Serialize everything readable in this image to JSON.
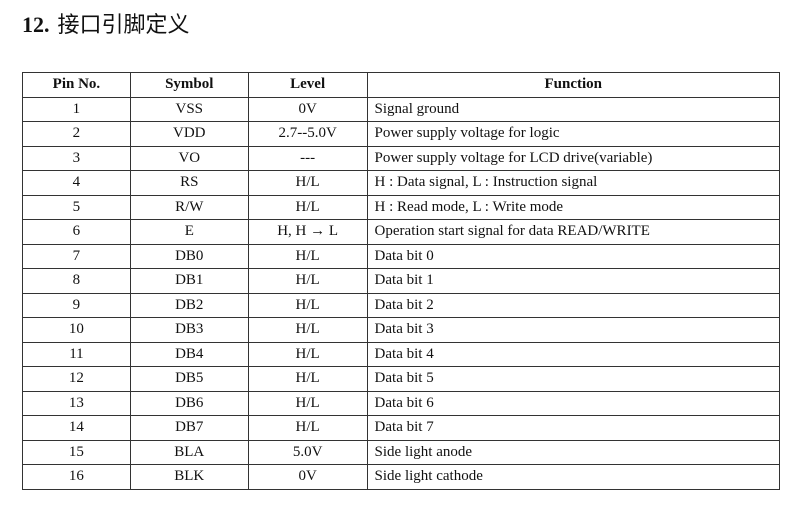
{
  "heading": {
    "number": "12.",
    "text": "接口引脚定义"
  },
  "table": {
    "columns": [
      "Pin No.",
      "Symbol",
      "Level",
      "Function"
    ],
    "rows": [
      [
        "1",
        "VSS",
        "0V",
        "Signal ground"
      ],
      [
        "2",
        "VDD",
        "2.7--5.0V",
        "Power supply voltage for logic"
      ],
      [
        "3",
        "VO",
        "---",
        "Power supply voltage for LCD drive(variable)"
      ],
      [
        "4",
        "RS",
        "H/L",
        "H : Data signal,    L : Instruction signal"
      ],
      [
        "5",
        "R/W",
        "H/L",
        "H : Read mode, L : Write mode"
      ],
      [
        "6",
        "E",
        "H, H → L",
        "Operation start signal for data READ/WRITE"
      ],
      [
        "7",
        "DB0",
        "H/L",
        "Data bit 0"
      ],
      [
        "8",
        "DB1",
        "H/L",
        "Data bit 1"
      ],
      [
        "9",
        "DB2",
        "H/L",
        "Data bit 2"
      ],
      [
        "10",
        "DB3",
        "H/L",
        "Data bit 3"
      ],
      [
        "11",
        "DB4",
        "H/L",
        "Data bit 4"
      ],
      [
        "12",
        "DB5",
        "H/L",
        "Data bit 5"
      ],
      [
        "13",
        "DB6",
        "H/L",
        "Data bit 6"
      ],
      [
        "14",
        "DB7",
        "H/L",
        "Data bit 7"
      ],
      [
        "15",
        "BLA",
        "5.0V",
        "Side light anode"
      ],
      [
        "16",
        "BLK",
        "0V",
        "Side light cathode"
      ]
    ]
  }
}
